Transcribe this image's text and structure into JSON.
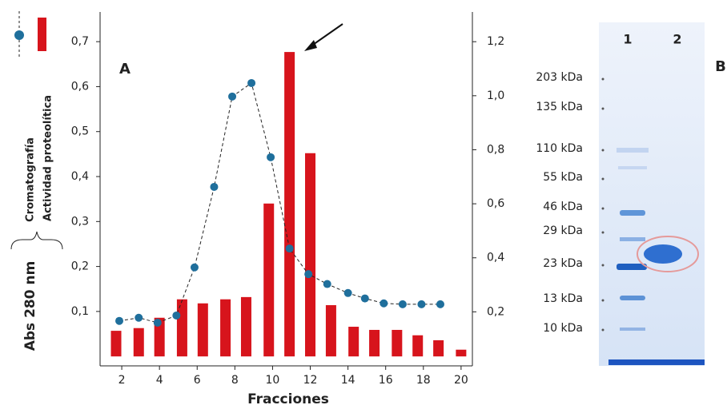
{
  "chart_data": {
    "type": "combo",
    "x_label": "Fracciones",
    "y_label": "Abs 280 nm",
    "xlim": [
      0.85,
      20.6
    ],
    "xticks": [
      2,
      4,
      6,
      8,
      10,
      12,
      14,
      16,
      18,
      20
    ],
    "ylim": [
      -0.021,
      0.766
    ],
    "yticks": [
      {
        "value": 0.1,
        "label": "0,1"
      },
      {
        "value": 0.2,
        "label": "0,2"
      },
      {
        "value": 0.3,
        "label": "0,3"
      },
      {
        "value": 0.4,
        "label": "0,4"
      },
      {
        "value": 0.5,
        "label": "0,5"
      },
      {
        "value": 0.6,
        "label": "0,6"
      },
      {
        "value": 0.7,
        "label": "0,7"
      }
    ],
    "y2lim": [
      0,
      1.31
    ],
    "y2ticks": [
      {
        "value": 0.2,
        "label": "0,2"
      },
      {
        "value": 0.4,
        "label": "0,4"
      },
      {
        "value": 0.6,
        "label": "0,6"
      },
      {
        "value": 0.8,
        "label": "0,8"
      },
      {
        "value": 1.0,
        "label": "1,0"
      },
      {
        "value": 1.2,
        "label": "1,2"
      }
    ],
    "series": [
      {
        "name": "Cromatografía",
        "type": "line",
        "color": "#1f6f9c",
        "x": [
          1.87,
          2.9,
          3.9,
          4.9,
          5.86,
          6.9,
          7.86,
          8.88,
          9.9,
          10.9,
          11.9,
          12.9,
          14.0,
          14.9,
          15.9,
          16.9,
          17.9,
          18.9
        ],
        "values": [
          0.079,
          0.086,
          0.075,
          0.091,
          0.198,
          0.377,
          0.578,
          0.608,
          0.443,
          0.24,
          0.183,
          0.161,
          0.141,
          0.129,
          0.118,
          0.116,
          0.116,
          0.116
        ]
      },
      {
        "name": "Actividad proteolítica",
        "type": "bar",
        "color": "#d7141c",
        "x": [
          1.7,
          2.9,
          4.0,
          5.2,
          6.3,
          7.5,
          8.6,
          9.8,
          10.9,
          12.0,
          13.1,
          14.3,
          15.4,
          16.6,
          17.7,
          18.8,
          20.0
        ],
        "values": [
          0.057,
          0.063,
          0.086,
          0.127,
          0.118,
          0.127,
          0.132,
          0.34,
          0.677,
          0.452,
          0.114,
          0.066,
          0.059,
          0.059,
          0.047,
          0.036,
          0.015
        ]
      }
    ]
  },
  "panel_labels": [
    "A",
    "B"
  ],
  "gel": {
    "lanes": [
      "1",
      "2"
    ],
    "markers": [
      "203 kDa",
      "135 kDa",
      "110 kDa",
      "55 kDa",
      "46 kDa",
      "29 kDa",
      "23 kDa",
      "13 kDa",
      "10 kDa"
    ]
  }
}
